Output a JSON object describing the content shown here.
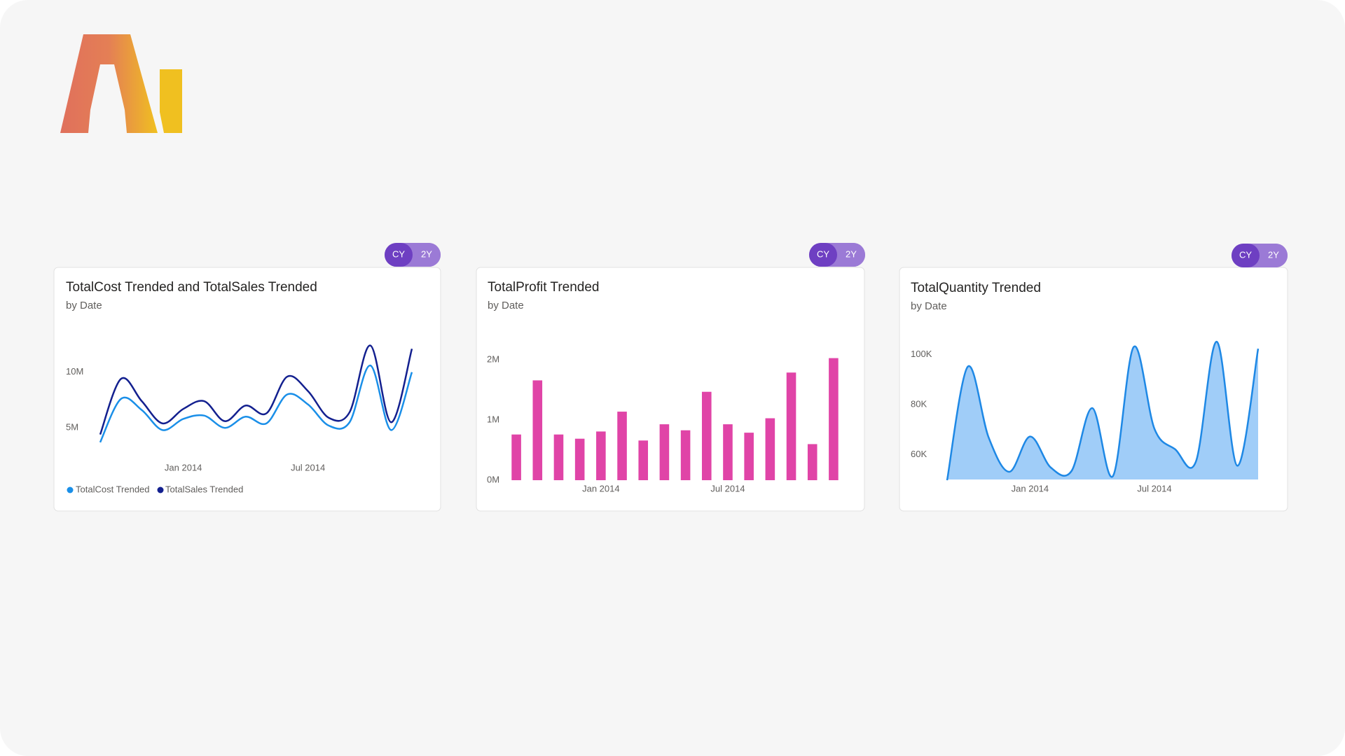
{
  "chart_data": [
    {
      "type": "line",
      "title": "TotalCost Trended and TotalSales Trended",
      "subtitle": "by Date",
      "categories": [
        null,
        null,
        null,
        null,
        "Jan 2014",
        null,
        null,
        null,
        null,
        null,
        "Jul 2014",
        null,
        null,
        null,
        null,
        null
      ],
      "series": [
        {
          "name": "TotalCost Trended",
          "color": "#1a8fe8",
          "values": [
            3700000,
            7600000,
            6600000,
            4800000,
            5800000,
            6100000,
            5000000,
            6000000,
            5400000,
            8000000,
            7100000,
            5200000,
            5500000,
            10600000,
            4800000,
            10000000
          ]
        },
        {
          "name": "TotalSales Trended",
          "color": "#13208f",
          "values": [
            4400000,
            9400000,
            7400000,
            5400000,
            6700000,
            7400000,
            5600000,
            7000000,
            6300000,
            9600000,
            8300000,
            5900000,
            6400000,
            12400000,
            5500000,
            12100000
          ]
        }
      ],
      "ylim": [
        3000000,
        13000000
      ],
      "yticks": [
        {
          "value": 5000000,
          "label": "5M"
        },
        {
          "value": 10000000,
          "label": "10M"
        }
      ],
      "grid": false,
      "legend": "bottom-left"
    },
    {
      "type": "bar",
      "title": "TotalProfit Trended",
      "subtitle": "by Date",
      "categories": [
        null,
        null,
        null,
        null,
        "Jan 2014",
        null,
        null,
        null,
        null,
        null,
        "Jul 2014",
        null,
        null,
        null,
        null,
        null
      ],
      "values": [
        760000,
        1660000,
        760000,
        690000,
        810000,
        1140000,
        660000,
        930000,
        830000,
        1470000,
        930000,
        790000,
        1030000,
        1790000,
        600000,
        2030000
      ],
      "color": "#e044a7",
      "ylim": [
        0,
        2200000
      ],
      "yticks": [
        {
          "value": 0,
          "label": "0M"
        },
        {
          "value": 1000000,
          "label": "1M"
        },
        {
          "value": 2000000,
          "label": "2M"
        }
      ],
      "grid": false
    },
    {
      "type": "area",
      "title": "TotalQuantity Trended",
      "subtitle": "by Date",
      "categories": [
        null,
        null,
        null,
        null,
        "Jan 2014",
        null,
        null,
        null,
        null,
        null,
        "Jul 2014",
        null,
        null,
        null,
        null,
        null
      ],
      "values": [
        49700,
        95200,
        66900,
        53100,
        67200,
        54800,
        53400,
        78600,
        51400,
        103100,
        70300,
        62100,
        57200,
        105200,
        55500,
        102400
      ],
      "color": "#1e88e5",
      "fill": "#a0cdf8",
      "ylim": [
        50000,
        110000
      ],
      "yticks": [
        {
          "value": 60000,
          "label": "60K"
        },
        {
          "value": 80000,
          "label": "80K"
        },
        {
          "value": 100000,
          "label": "100K"
        }
      ],
      "grid": false
    }
  ],
  "controls": [
    {
      "buttons": [
        "CY",
        "2Y"
      ]
    },
    {
      "buttons": [
        "CY",
        "2Y"
      ]
    },
    {
      "buttons": [
        "CY",
        "2Y"
      ]
    }
  ]
}
